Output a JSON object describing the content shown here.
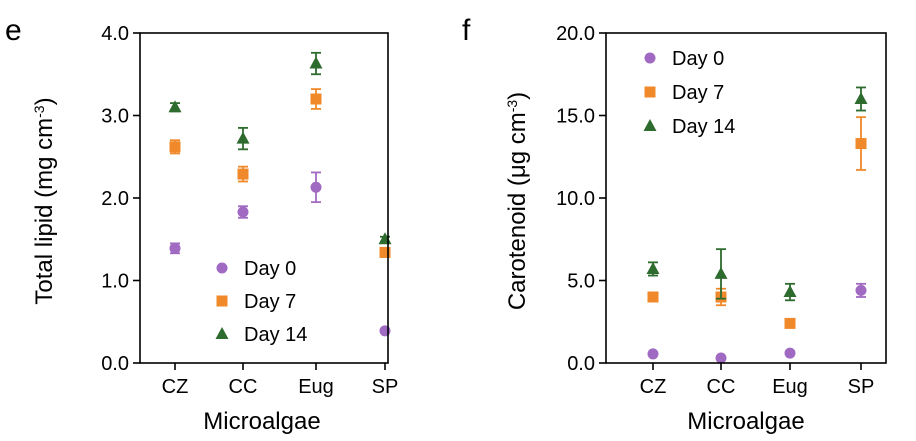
{
  "colors": {
    "day0": "#a06ac2",
    "day7": "#f0892a",
    "day14": "#2e6b2e"
  },
  "chart_data": [
    {
      "type": "scatter",
      "panel_label": "e",
      "xlabel": "Microalgae",
      "ylabel_main": "Total lipid (mg cm",
      "ylabel_sup": "-3",
      "ylabel_end": ")",
      "categories": [
        "CZ",
        "CC",
        "Eug",
        "SP"
      ],
      "ylim": [
        0,
        4
      ],
      "yticks": [
        "0.0",
        "1.0",
        "2.0",
        "3.0",
        "4.0"
      ],
      "ytick_values": [
        0,
        1,
        2,
        3,
        4
      ],
      "grid": false,
      "legend_position": "bottom-right",
      "series": [
        {
          "name": "Day 0",
          "marker": "circle",
          "color_key": "day0",
          "values": [
            1.39,
            1.83,
            2.13,
            0.39
          ],
          "errors": [
            0.06,
            0.07,
            0.18,
            0
          ]
        },
        {
          "name": "Day 7",
          "marker": "square",
          "color_key": "day7",
          "values": [
            2.62,
            2.29,
            3.2,
            1.34
          ],
          "errors": [
            0.08,
            0.09,
            0.12,
            0.05
          ]
        },
        {
          "name": "Day 14",
          "marker": "triangle",
          "color_key": "day14",
          "values": [
            3.1,
            2.72,
            3.63,
            1.5
          ],
          "errors": [
            0.05,
            0.13,
            0.13,
            0.03
          ]
        }
      ]
    },
    {
      "type": "scatter",
      "panel_label": "f",
      "xlabel": "Microalgae",
      "ylabel_main": "Carotenoid (μg cm",
      "ylabel_sup": "-3",
      "ylabel_end": ")",
      "categories": [
        "CZ",
        "CC",
        "Eug",
        "SP"
      ],
      "ylim": [
        0,
        20
      ],
      "yticks": [
        "0.0",
        "5.0",
        "10.0",
        "15.0",
        "20.0"
      ],
      "ytick_values": [
        0,
        5,
        10,
        15,
        20
      ],
      "grid": false,
      "legend_position": "top-left",
      "series": [
        {
          "name": "Day 0",
          "marker": "circle",
          "color_key": "day0",
          "values": [
            0.55,
            0.3,
            0.6,
            4.4
          ],
          "errors": [
            0,
            0,
            0,
            0.4
          ]
        },
        {
          "name": "Day 7",
          "marker": "square",
          "color_key": "day7",
          "values": [
            4.0,
            4.0,
            2.4,
            13.3
          ],
          "errors": [
            0,
            0.5,
            0,
            1.6
          ]
        },
        {
          "name": "Day 14",
          "marker": "triangle",
          "color_key": "day14",
          "values": [
            5.7,
            5.4,
            4.3,
            16.0
          ],
          "errors": [
            0.4,
            1.5,
            0.5,
            0.7
          ]
        }
      ]
    }
  ]
}
